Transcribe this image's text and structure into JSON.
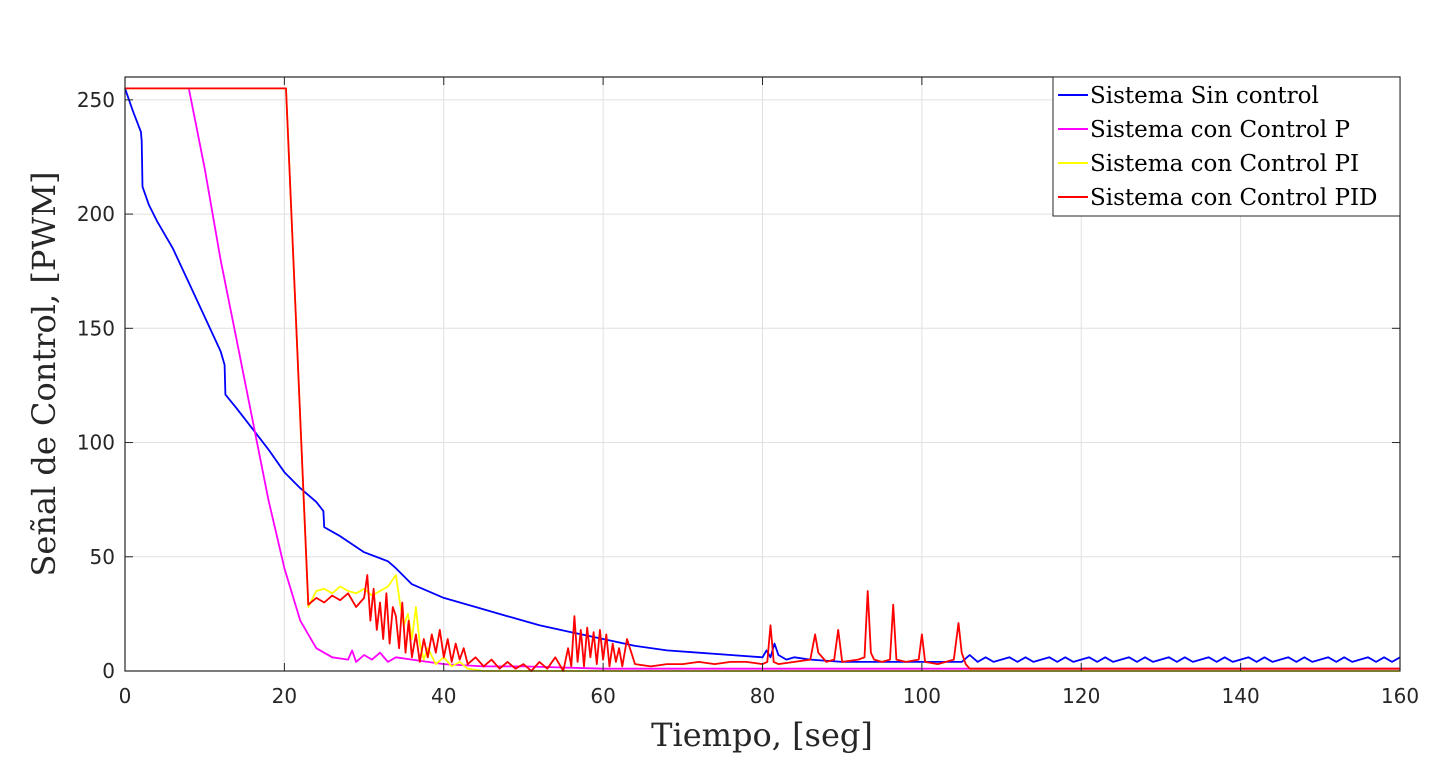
{
  "chart_data": {
    "type": "line",
    "title": "",
    "xlabel": "Tiempo, [seg]",
    "ylabel": "Señal de Control, [PWM]",
    "xlim": [
      0,
      160
    ],
    "ylim": [
      0,
      260
    ],
    "x_ticks": [
      "0",
      "20",
      "40",
      "60",
      "80",
      "100",
      "120",
      "140",
      "160"
    ],
    "y_ticks": [
      "0",
      "50",
      "100",
      "150",
      "200",
      "250"
    ],
    "grid": true,
    "legend_position": "top-right",
    "series": [
      {
        "name": "Sistema Sin control",
        "color": "#0000ff",
        "points": [
          [
            0,
            255
          ],
          [
            1,
            245
          ],
          [
            2,
            236
          ],
          [
            2.1,
            232
          ],
          [
            2.2,
            212
          ],
          [
            3,
            204
          ],
          [
            4,
            197
          ],
          [
            6,
            185
          ],
          [
            8,
            170
          ],
          [
            10,
            155
          ],
          [
            12,
            140
          ],
          [
            12.5,
            134
          ],
          [
            12.6,
            121
          ],
          [
            14,
            115
          ],
          [
            16,
            106
          ],
          [
            18,
            97
          ],
          [
            20,
            87
          ],
          [
            22,
            80
          ],
          [
            24,
            74
          ],
          [
            24.9,
            70
          ],
          [
            25,
            63
          ],
          [
            27,
            59
          ],
          [
            30,
            52
          ],
          [
            33,
            48
          ],
          [
            34,
            45
          ],
          [
            36,
            38
          ],
          [
            40,
            32
          ],
          [
            44,
            28
          ],
          [
            48,
            24
          ],
          [
            52,
            20
          ],
          [
            56,
            17
          ],
          [
            60,
            14
          ],
          [
            64,
            11
          ],
          [
            68,
            9
          ],
          [
            72,
            8
          ],
          [
            76,
            7
          ],
          [
            80,
            6
          ],
          [
            80.5,
            9
          ],
          [
            81,
            6
          ],
          [
            81.5,
            12
          ],
          [
            82,
            7
          ],
          [
            83,
            5
          ],
          [
            84,
            6
          ],
          [
            86,
            5
          ],
          [
            90,
            4
          ],
          [
            95,
            4
          ],
          [
            100,
            4
          ],
          [
            105,
            4
          ],
          [
            106,
            7
          ],
          [
            107,
            4
          ],
          [
            108,
            6
          ],
          [
            109,
            4
          ],
          [
            111,
            6
          ],
          [
            112,
            4
          ],
          [
            113,
            6
          ],
          [
            114,
            4
          ],
          [
            116,
            6
          ],
          [
            117,
            4
          ],
          [
            118,
            6
          ],
          [
            119,
            4
          ],
          [
            121,
            6
          ],
          [
            122,
            4
          ],
          [
            123,
            6
          ],
          [
            124,
            4
          ],
          [
            126,
            6
          ],
          [
            127,
            4
          ],
          [
            128,
            6
          ],
          [
            129,
            4
          ],
          [
            131,
            6
          ],
          [
            132,
            4
          ],
          [
            133,
            6
          ],
          [
            134,
            4
          ],
          [
            136,
            6
          ],
          [
            137,
            4
          ],
          [
            138,
            6
          ],
          [
            139,
            4
          ],
          [
            141,
            6
          ],
          [
            142,
            4
          ],
          [
            143,
            6
          ],
          [
            144,
            4
          ],
          [
            146,
            6
          ],
          [
            147,
            4
          ],
          [
            148,
            6
          ],
          [
            149,
            4
          ],
          [
            151,
            6
          ],
          [
            152,
            4
          ],
          [
            153,
            6
          ],
          [
            154,
            4
          ],
          [
            156,
            6
          ],
          [
            157,
            4
          ],
          [
            158,
            6
          ],
          [
            159,
            4
          ],
          [
            160,
            6
          ]
        ]
      },
      {
        "name": "Sistema con Control P",
        "color": "#ff00ff",
        "points": [
          [
            8,
            255
          ],
          [
            10,
            220
          ],
          [
            12,
            180
          ],
          [
            14,
            145
          ],
          [
            16,
            110
          ],
          [
            18,
            75
          ],
          [
            20,
            45
          ],
          [
            22,
            22
          ],
          [
            24,
            10
          ],
          [
            26,
            6
          ],
          [
            28,
            5
          ],
          [
            28.5,
            9
          ],
          [
            29,
            4
          ],
          [
            30,
            7
          ],
          [
            31,
            5
          ],
          [
            32,
            8
          ],
          [
            33,
            4
          ],
          [
            34,
            6
          ],
          [
            36,
            5
          ],
          [
            38,
            4
          ],
          [
            40,
            3
          ],
          [
            45,
            2
          ],
          [
            50,
            2
          ],
          [
            60,
            1
          ],
          [
            70,
            1
          ],
          [
            80,
            1
          ],
          [
            100,
            1
          ],
          [
            120,
            1
          ],
          [
            140,
            1
          ],
          [
            160,
            1
          ]
        ]
      },
      {
        "name": "Sistema con Control PI",
        "color": "#ffff00",
        "points": [
          [
            0,
            255
          ],
          [
            20,
            255
          ],
          [
            20.2,
            255
          ],
          [
            23,
            28
          ],
          [
            24,
            35
          ],
          [
            25,
            36
          ],
          [
            26,
            34
          ],
          [
            27,
            37
          ],
          [
            28,
            35
          ],
          [
            29,
            34
          ],
          [
            30,
            36
          ],
          [
            31,
            33
          ],
          [
            32,
            35
          ],
          [
            33,
            37
          ],
          [
            34,
            42
          ],
          [
            34.5,
            30
          ],
          [
            35,
            20
          ],
          [
            35.5,
            25
          ],
          [
            36,
            14
          ],
          [
            36.5,
            28
          ],
          [
            37,
            12
          ],
          [
            37.5,
            5
          ],
          [
            38,
            10
          ],
          [
            39,
            3
          ],
          [
            40,
            6
          ],
          [
            41,
            2
          ],
          [
            42,
            4
          ],
          [
            43,
            1
          ],
          [
            45,
            0
          ],
          [
            50,
            0
          ],
          [
            60,
            0
          ],
          [
            80,
            0
          ],
          [
            100,
            0
          ],
          [
            120,
            0
          ],
          [
            140,
            0
          ],
          [
            160,
            0
          ]
        ]
      },
      {
        "name": "Sistema con Control PID",
        "color": "#ff0000",
        "points": [
          [
            0,
            255
          ],
          [
            20,
            255
          ],
          [
            20.2,
            255
          ],
          [
            23,
            29
          ],
          [
            24,
            32
          ],
          [
            25,
            30
          ],
          [
            26,
            33
          ],
          [
            27,
            31
          ],
          [
            28,
            34
          ],
          [
            29,
            28
          ],
          [
            30,
            32
          ],
          [
            30.4,
            42
          ],
          [
            30.8,
            22
          ],
          [
            31.2,
            36
          ],
          [
            31.6,
            18
          ],
          [
            32,
            30
          ],
          [
            32.4,
            14
          ],
          [
            32.8,
            34
          ],
          [
            33.2,
            12
          ],
          [
            33.6,
            28
          ],
          [
            34,
            24
          ],
          [
            34.4,
            10
          ],
          [
            34.8,
            30
          ],
          [
            35.2,
            8
          ],
          [
            35.6,
            22
          ],
          [
            36,
            6
          ],
          [
            36.5,
            16
          ],
          [
            37,
            4
          ],
          [
            37.5,
            14
          ],
          [
            38,
            6
          ],
          [
            38.5,
            16
          ],
          [
            39,
            8
          ],
          [
            39.5,
            18
          ],
          [
            40,
            6
          ],
          [
            40.5,
            14
          ],
          [
            41,
            4
          ],
          [
            41.5,
            12
          ],
          [
            42,
            5
          ],
          [
            42.5,
            10
          ],
          [
            43,
            3
          ],
          [
            44,
            6
          ],
          [
            45,
            2
          ],
          [
            46,
            5
          ],
          [
            47,
            1
          ],
          [
            48,
            4
          ],
          [
            49,
            1
          ],
          [
            50,
            3
          ],
          [
            51,
            0
          ],
          [
            52,
            4
          ],
          [
            53,
            1
          ],
          [
            54,
            6
          ],
          [
            55,
            0
          ],
          [
            55.6,
            10
          ],
          [
            56,
            2
          ],
          [
            56.4,
            24
          ],
          [
            56.8,
            4
          ],
          [
            57.2,
            18
          ],
          [
            57.6,
            2
          ],
          [
            58,
            19
          ],
          [
            58.4,
            6
          ],
          [
            58.8,
            17
          ],
          [
            59.2,
            3
          ],
          [
            59.6,
            18
          ],
          [
            60,
            5
          ],
          [
            60.4,
            16
          ],
          [
            60.8,
            2
          ],
          [
            61.2,
            12
          ],
          [
            61.6,
            4
          ],
          [
            62,
            10
          ],
          [
            62.4,
            2
          ],
          [
            63,
            14
          ],
          [
            64,
            3
          ],
          [
            66,
            2
          ],
          [
            68,
            3
          ],
          [
            70,
            3
          ],
          [
            72,
            4
          ],
          [
            74,
            3
          ],
          [
            76,
            4
          ],
          [
            78,
            4
          ],
          [
            80,
            3
          ],
          [
            80.6,
            4
          ],
          [
            81,
            20
          ],
          [
            81.4,
            4
          ],
          [
            82,
            3
          ],
          [
            84,
            4
          ],
          [
            86,
            5
          ],
          [
            86.6,
            16
          ],
          [
            87,
            8
          ],
          [
            88,
            4
          ],
          [
            89,
            5
          ],
          [
            89.5,
            18
          ],
          [
            90,
            4
          ],
          [
            92,
            5
          ],
          [
            92.8,
            6
          ],
          [
            93.2,
            35
          ],
          [
            93.6,
            8
          ],
          [
            94,
            5
          ],
          [
            95,
            4
          ],
          [
            96,
            5
          ],
          [
            96.4,
            29
          ],
          [
            96.8,
            5
          ],
          [
            98,
            4
          ],
          [
            99.6,
            5
          ],
          [
            100,
            16
          ],
          [
            100.4,
            4
          ],
          [
            102,
            3
          ],
          [
            104,
            5
          ],
          [
            104.6,
            21
          ],
          [
            105,
            8
          ],
          [
            105.5,
            3
          ],
          [
            106,
            1
          ],
          [
            108,
            1
          ],
          [
            110,
            1
          ],
          [
            120,
            1
          ],
          [
            130,
            1
          ],
          [
            140,
            1
          ],
          [
            150,
            1
          ],
          [
            160,
            1
          ]
        ]
      }
    ]
  }
}
